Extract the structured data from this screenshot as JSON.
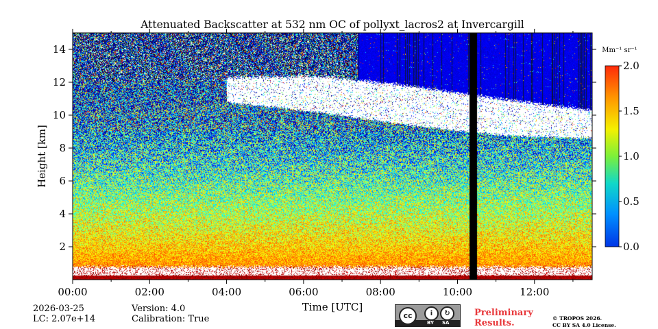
{
  "chart_data": {
    "type": "heatmap",
    "title": "Attenuated Backscatter at 532 nm OC of pollyxt_lacros2 at Invercargill",
    "xlabel": "Time [UTC]",
    "ylabel": "Height [km]",
    "xlim": [
      0,
      13.5
    ],
    "ylim": [
      0,
      15
    ],
    "x_ticks": [
      0,
      2,
      4,
      6,
      8,
      10,
      12
    ],
    "x_tick_labels": [
      "00:00",
      "02:00",
      "04:00",
      "06:00",
      "08:00",
      "10:00",
      "12:00"
    ],
    "y_ticks": [
      2,
      4,
      6,
      8,
      10,
      12,
      14
    ],
    "y_tick_labels": [
      "2",
      "4",
      "6",
      "8",
      "10",
      "12",
      "14"
    ],
    "colorbar": {
      "label": "Mm⁻¹ sr⁻¹",
      "range": [
        0.0,
        2.0
      ],
      "ticks": [
        0.0,
        0.5,
        1.0,
        1.5,
        2.0
      ],
      "tick_labels": [
        "0.0",
        "0.5",
        "1.0",
        "1.5",
        "2.0"
      ],
      "colormap": "jet"
    },
    "features": {
      "surface_layer_top_km": 0.8,
      "cloud_layer_base_km": [
        10.8,
        10.2,
        9.4,
        8.8,
        8.6
      ],
      "cloud_layer_top_km": [
        12.3,
        12.4,
        11.8,
        11.0,
        10.3
      ],
      "cloud_start_hour": 4.0,
      "data_gap_hours": [
        10.3,
        10.5
      ],
      "low_signal_start_hour": 7.4
    }
  },
  "footer": {
    "date": "2026-03-25",
    "lc": "LC: 2.07e+14",
    "version": "Version: 4.0",
    "calibration": "Calibration: True",
    "license_badge_by": "BY",
    "license_badge_sa": "SA",
    "preliminary_line1": "Preliminary",
    "preliminary_line2": "Results.",
    "copyright_line1": "© TROPOS 2026.",
    "copyright_line2": "CC BY SA 4.0 License."
  }
}
